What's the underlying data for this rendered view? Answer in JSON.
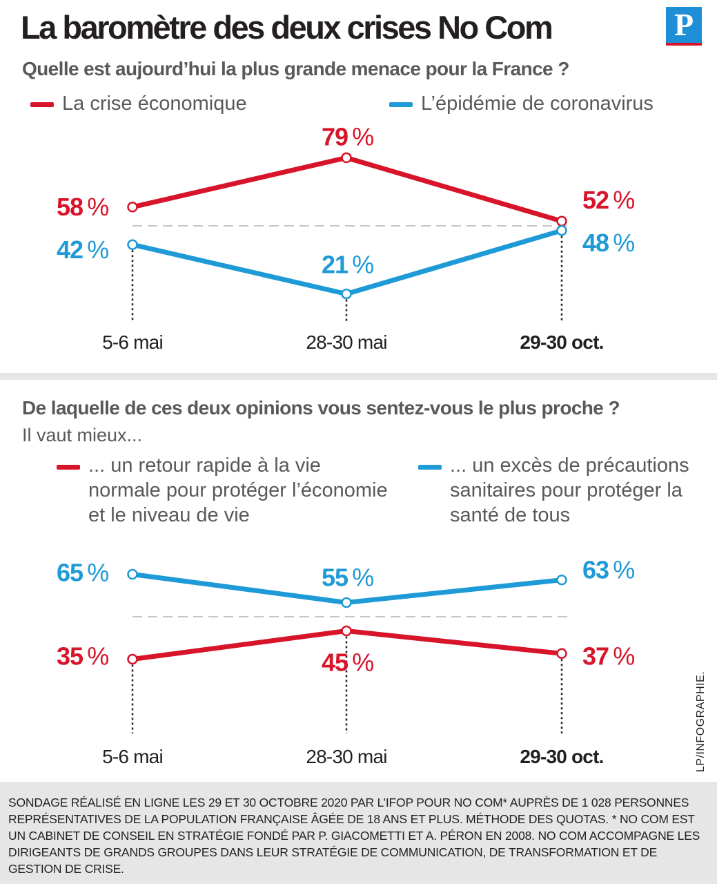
{
  "title": "La baromètre des deux crises No Com",
  "logo_letter": "P",
  "colors": {
    "red": "#d7142a",
    "blue": "#1e9ad6",
    "grey": "#58595b"
  },
  "credit": "LP/INFOGRAPHIE.",
  "chart1": {
    "question": "Quelle est aujourd’hui la plus grande menace pour la France ?",
    "legend": {
      "red": "La crise économique",
      "blue": "L’épidémie de coronavirus"
    }
  },
  "chart2": {
    "question": "De laquelle de ces deux opinions vous sentez-vous le plus proche ?",
    "sub": "Il vaut mieux...",
    "legend": {
      "red": "... un retour rapide à la vie normale pour protéger l’économie et le niveau de vie",
      "blue": "... un excès de précautions sanitaires pour protéger la santé de tous"
    }
  },
  "footer": {
    "method": "Sondage réalisé en ligne les 29 et 30 octobre 2020 par l’Ifop pour No Com* auprès de 1 028 personnes représentatives de la population française âgée de 18 ans et plus. Méthode des quotas.",
    "note": "* No Com est un cabinet de conseil en stratégie fondé par P. Giacometti et A. Péron en 2008. No Com accompagne les dirigeants de grands groupes dans leur stratégie de communication, de transformation et de gestion de crise."
  },
  "chart_data": [
    {
      "type": "line",
      "title": "Quelle est aujourd’hui la plus grande menace pour la France ?",
      "categories": [
        "5-6 mai",
        "28-30 mai",
        "29-30 oct."
      ],
      "unit": "%",
      "series": [
        {
          "name": "La crise économique",
          "color": "#d7142a",
          "values": [
            58,
            79,
            52
          ]
        },
        {
          "name": "L’épidémie de coronavirus",
          "color": "#1e9ad6",
          "values": [
            42,
            21,
            48
          ]
        }
      ],
      "reference_line": 50
    },
    {
      "type": "line",
      "title": "De laquelle de ces deux opinions vous sentez-vous le plus proche ?",
      "categories": [
        "5-6 mai",
        "28-30 mai",
        "29-30 oct."
      ],
      "unit": "%",
      "series": [
        {
          "name": "... un retour rapide à la vie normale pour protéger l’économie et le niveau de vie",
          "color": "#d7142a",
          "values": [
            35,
            45,
            37
          ]
        },
        {
          "name": "... un excès de précautions sanitaires pour protéger la santé de tous",
          "color": "#1e9ad6",
          "values": [
            65,
            55,
            63
          ]
        }
      ],
      "reference_line": 50
    }
  ]
}
